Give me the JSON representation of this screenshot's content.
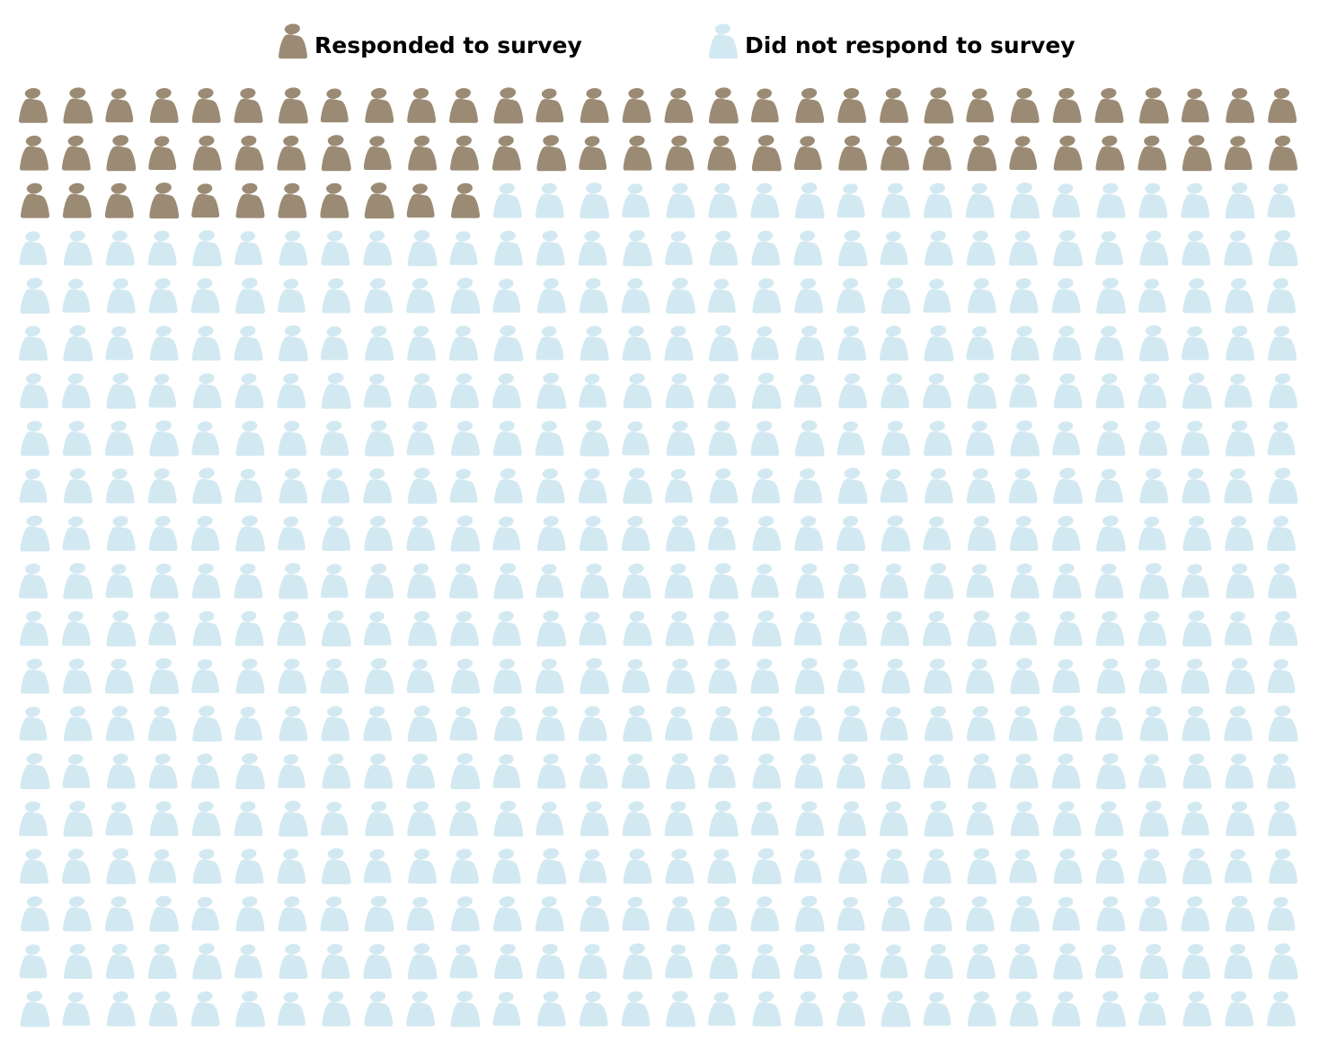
{
  "legend": {
    "responded_label": "Responded to survey",
    "not_responded_label": "Did not respond to survey"
  },
  "colors": {
    "responded": "#9b8b74",
    "not_responded": "#d3e9f2",
    "background": "#ffffff"
  },
  "chart_data": {
    "type": "pictograph",
    "icon": "person-icon",
    "grid": {
      "rows": 20,
      "columns": 30
    },
    "total_icons": 600,
    "series": [
      {
        "name": "Responded to survey",
        "value": 71,
        "color": "#9b8b74"
      },
      {
        "name": "Did not respond to survey",
        "value": 529,
        "color": "#d3e9f2"
      }
    ],
    "fill_order": "row-major, left-to-right from top-left",
    "legend_position": "top-center"
  }
}
